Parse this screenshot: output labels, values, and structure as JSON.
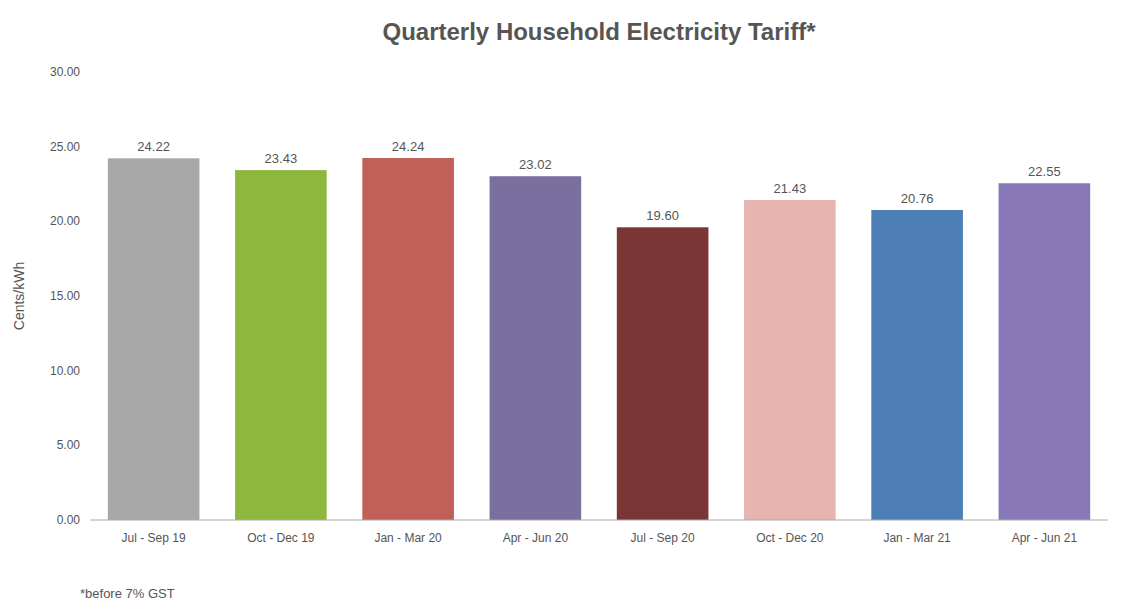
{
  "chart_data": {
    "type": "bar",
    "title": "Quarterly Household Electricity Tariff*",
    "ylabel": "Cents/kWh",
    "footnote": "*before 7% GST",
    "categories": [
      "Jul - Sep 19",
      "Oct - Dec 19",
      "Jan - Mar 20",
      "Apr - Jun 20",
      "Jul - Sep 20",
      "Oct - Dec 20",
      "Jan - Mar 21",
      "Apr - Jun 21"
    ],
    "values": [
      24.22,
      23.43,
      24.24,
      23.02,
      19.6,
      21.43,
      20.76,
      22.55
    ],
    "value_labels": [
      "24.22",
      "23.43",
      "24.24",
      "23.02",
      "19.60",
      "21.43",
      "20.76",
      "22.55"
    ],
    "colors": [
      "#a8a8a8",
      "#8db83d",
      "#bf6158",
      "#7b6fa0",
      "#7a3535",
      "#e8b4b0",
      "#4d7eb5",
      "#8878b8"
    ],
    "ylim": [
      0,
      30
    ],
    "yticks": [
      {
        "value": 0,
        "label": "0.00"
      },
      {
        "value": 5,
        "label": "5.00"
      },
      {
        "value": 10,
        "label": "10.00"
      },
      {
        "value": 15,
        "label": "15.00"
      },
      {
        "value": 20,
        "label": "20.00"
      },
      {
        "value": 25,
        "label": "25.00"
      },
      {
        "value": 30,
        "label": "30.00"
      }
    ],
    "grid": false,
    "data_labels": true
  }
}
